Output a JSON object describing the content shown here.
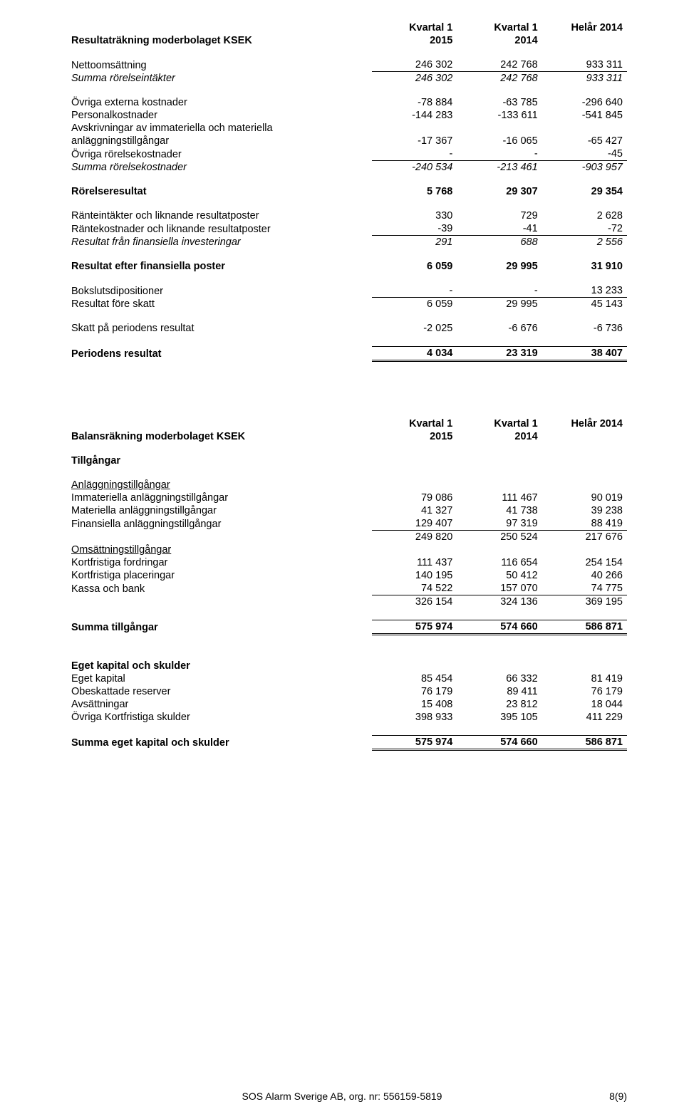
{
  "columns": {
    "c1": [
      "Kvartal 1",
      "2015"
    ],
    "c2": [
      "Kvartal 1",
      "2014"
    ],
    "c3": [
      "Helår 2014",
      ""
    ]
  },
  "section1": {
    "heading": "Resultaträkning moderbolaget KSEK",
    "rows": [
      {
        "label": "Nettoomsättning",
        "v": [
          "246 302",
          "242 768",
          "933 311"
        ]
      },
      {
        "label": "Summa rörelseintäkter",
        "v": [
          "246 302",
          "242 768",
          "933 311"
        ],
        "italic": true,
        "sumtop": true
      }
    ],
    "rows2": [
      {
        "label": "Övriga externa kostnader",
        "v": [
          "-78 884",
          "-63 785",
          "-296 640"
        ]
      },
      {
        "label": "Personalkostnader",
        "v": [
          "-144 283",
          "-133 611",
          "-541 845"
        ]
      },
      {
        "label": "Avskrivningar av immateriella och materiella",
        "v": [
          "",
          "",
          ""
        ]
      },
      {
        "label": "anläggningstillgångar",
        "v": [
          "-17 367",
          "-16 065",
          "-65 427"
        ]
      },
      {
        "label": "Övriga rörelsekostnader",
        "v": [
          "-",
          "-",
          "-45"
        ]
      },
      {
        "label": "Summa rörelsekostnader",
        "v": [
          "-240 534",
          "-213 461",
          "-903 957"
        ],
        "italic": true,
        "sumtop": true
      }
    ],
    "rr": {
      "label": "Rörelseresultat",
      "v": [
        "5 768",
        "29 307",
        "29 354"
      ],
      "bold": true
    },
    "fin": [
      {
        "label": "Ränteintäkter och liknande resultatposter",
        "v": [
          "330",
          "729",
          "2 628"
        ]
      },
      {
        "label": "Räntekostnader och liknande resultatposter",
        "v": [
          "-39",
          "-41",
          "-72"
        ]
      },
      {
        "label": "Resultat från finansiella investeringar",
        "v": [
          "291",
          "688",
          "2 556"
        ],
        "italic": true,
        "sumtop": true
      }
    ],
    "raf": {
      "label": "Resultat efter finansiella poster",
      "v": [
        "6 059",
        "29 995",
        "31 910"
      ],
      "bold": true
    },
    "disp": [
      {
        "label": "Bokslutsdipositioner",
        "v": [
          "-",
          "-",
          "13 233"
        ]
      },
      {
        "label": "Resultat före skatt",
        "v": [
          "6 059",
          "29 995",
          "45 143"
        ],
        "sumtop": true
      }
    ],
    "tax": {
      "label": "Skatt på periodens resultat",
      "v": [
        "-2 025",
        "-6 676",
        "-6 736"
      ]
    },
    "per": {
      "label": "Periodens resultat",
      "v": [
        "4 034",
        "23 319",
        "38 407"
      ],
      "bold": true
    }
  },
  "section2": {
    "heading": "Balansräkning moderbolaget KSEK",
    "sub1": "Tillgångar",
    "anl_head": "Anläggningstillgångar",
    "anl": [
      {
        "label": "Immateriella anläggningstillgångar",
        "v": [
          "79 086",
          "111 467",
          "90 019"
        ]
      },
      {
        "label": "Materiella anläggningstillgångar",
        "v": [
          "41 327",
          "41 738",
          "39 238"
        ]
      },
      {
        "label": "Finansiella anläggningstillgångar",
        "v": [
          "129 407",
          "97 319",
          "88 419"
        ],
        "bb": true
      },
      {
        "label": "",
        "v": [
          "249 820",
          "250 524",
          "217 676"
        ]
      }
    ],
    "oms_head": "Omsättningstillgångar",
    "oms": [
      {
        "label": "Kortfristiga fordringar",
        "v": [
          "111 437",
          "116 654",
          "254 154"
        ]
      },
      {
        "label": "Kortfristiga placeringar",
        "v": [
          "140 195",
          "50 412",
          "40 266"
        ]
      },
      {
        "label": "Kassa och bank",
        "v": [
          "74 522",
          "157 070",
          "74 775"
        ],
        "bb": true
      },
      {
        "label": "",
        "v": [
          "326 154",
          "324 136",
          "369 195"
        ]
      }
    ],
    "sum_t": {
      "label": "Summa tillgångar",
      "v": [
        "575 974",
        "574 660",
        "586 871"
      ],
      "bold": true
    },
    "eget_head": "Eget kapital och skulder",
    "eget": [
      {
        "label": "Eget kapital",
        "v": [
          "85 454",
          "66 332",
          "81 419"
        ]
      },
      {
        "label": "Obeskattade reserver",
        "v": [
          "76 179",
          "89 411",
          "76 179"
        ]
      },
      {
        "label": "Avsättningar",
        "v": [
          "15 408",
          "23 812",
          "18 044"
        ]
      },
      {
        "label": "Övriga Kortfristiga skulder",
        "v": [
          "398 933",
          "395 105",
          "411 229"
        ]
      }
    ],
    "sum_e": {
      "label": "Summa eget kapital och skulder",
      "v": [
        "575 974",
        "574 660",
        "586 871"
      ],
      "bold": true
    }
  },
  "footer": "SOS Alarm Sverige AB, org. nr: 556159-5819",
  "pagenum": "8(9)"
}
